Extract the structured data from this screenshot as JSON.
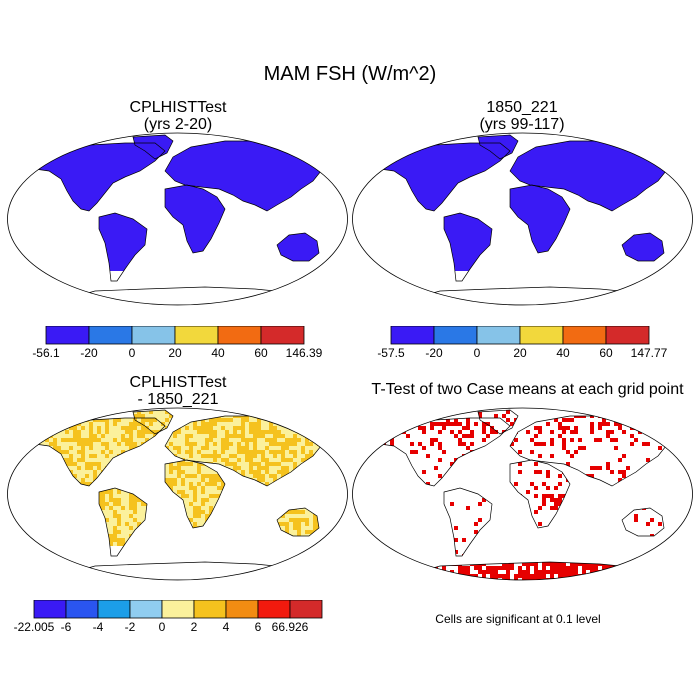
{
  "figure_title": "MAM FSH (W/m^2)",
  "chart_data": [
    {
      "type": "map",
      "title": "CPLHISTTest",
      "subtitle": "(yrs 2-20)",
      "variable": "FSH",
      "units": "W/m^2",
      "season": "MAM",
      "colorbar": {
        "colors": [
          "#3a1af5",
          "#2a78e6",
          "#86c3e8",
          "#f2d83c",
          "#f26b12",
          "#d42a2a"
        ],
        "tick_labels": [
          "-56.1",
          "-20",
          "0",
          "20",
          "40",
          "60",
          "146.39"
        ],
        "min": -56.1,
        "max": 146.39
      }
    },
    {
      "type": "map",
      "title": "1850_221",
      "subtitle": "(yrs 99-117)",
      "variable": "FSH",
      "units": "W/m^2",
      "season": "MAM",
      "colorbar": {
        "colors": [
          "#3a1af5",
          "#2a78e6",
          "#86c3e8",
          "#f2d83c",
          "#f26b12",
          "#d42a2a"
        ],
        "tick_labels": [
          "-57.5",
          "-20",
          "0",
          "20",
          "40",
          "60",
          "147.77"
        ],
        "min": -57.5,
        "max": 147.77
      }
    },
    {
      "type": "map",
      "title": "CPLHISTTest",
      "subtitle": "- 1850_221",
      "variable": "FSH difference",
      "units": "W/m^2",
      "colorbar": {
        "colors": [
          "#3a1af5",
          "#2a55f0",
          "#1c9ee8",
          "#90cdf0",
          "#fbf19c",
          "#f5c21e",
          "#f28c12",
          "#f21a0e",
          "#d42a2a"
        ],
        "tick_labels": [
          "-22.005",
          "-6",
          "-4",
          "-2",
          "0",
          "2",
          "4",
          "6",
          "66.926"
        ],
        "min": -22.005,
        "max": 66.926
      }
    },
    {
      "type": "map",
      "title": "T-Test of two Case means at each grid point",
      "subtitle": "",
      "significance_color": "#e60000",
      "note": "Cells are significant at 0.1 level"
    }
  ]
}
